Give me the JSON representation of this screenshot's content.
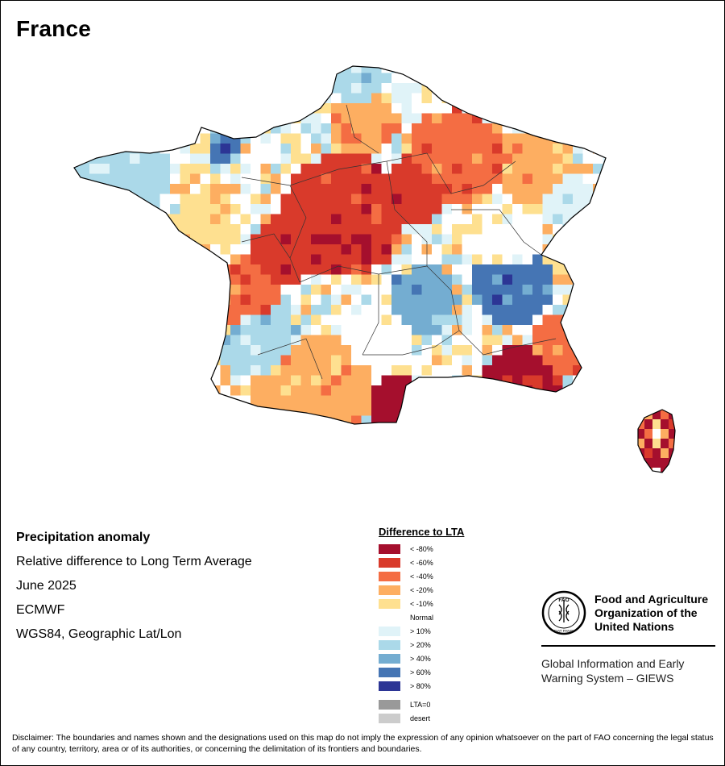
{
  "map": {
    "title": "France"
  },
  "info": {
    "heading": "Precipitation anomaly",
    "subtitle": "Relative difference to Long Term Average",
    "period": "June 2025",
    "source": "ECMWF",
    "projection": "WGS84, Geographic Lat/Lon"
  },
  "legend": {
    "title": "Difference to LTA",
    "classes": [
      {
        "label": "< -80%",
        "color": "#a50f2d"
      },
      {
        "label": "< -60%",
        "color": "#d93a2b"
      },
      {
        "label": "< -40%",
        "color": "#f46d43"
      },
      {
        "label": "< -20%",
        "color": "#fdae61"
      },
      {
        "label": "< -10%",
        "color": "#fee090"
      },
      {
        "label": "Normal",
        "color": "#ffffff"
      },
      {
        "label": "> 10%",
        "color": "#e0f3f8"
      },
      {
        "label": "> 20%",
        "color": "#abd9e9"
      },
      {
        "label": "> 40%",
        "color": "#74add1"
      },
      {
        "label": "> 60%",
        "color": "#4575b4"
      },
      {
        "label": "> 80%",
        "color": "#2c3595"
      }
    ],
    "extra": [
      {
        "label": "LTA=0",
        "color": "#999999"
      },
      {
        "label": "desert",
        "color": "#cccccc"
      }
    ]
  },
  "logo": {
    "emblem_text": "FAO",
    "emblem_motto": "FIAT PANIS",
    "org_line1": "Food and Agriculture",
    "org_line2": "Organization of the",
    "org_line3": "United Nations",
    "giews_line1": "Global Information and Early",
    "giews_line2": "Warning System – GIEWS"
  },
  "disclaimer": "Disclaimer: The boundaries and names shown and the designations used on this map do not imply the expression of any opinion whatsoever on the part of FAO concerning the legal status of any country, territory, area or of its authorities, or concerning the delimitation of its frontiers and boundaries."
}
